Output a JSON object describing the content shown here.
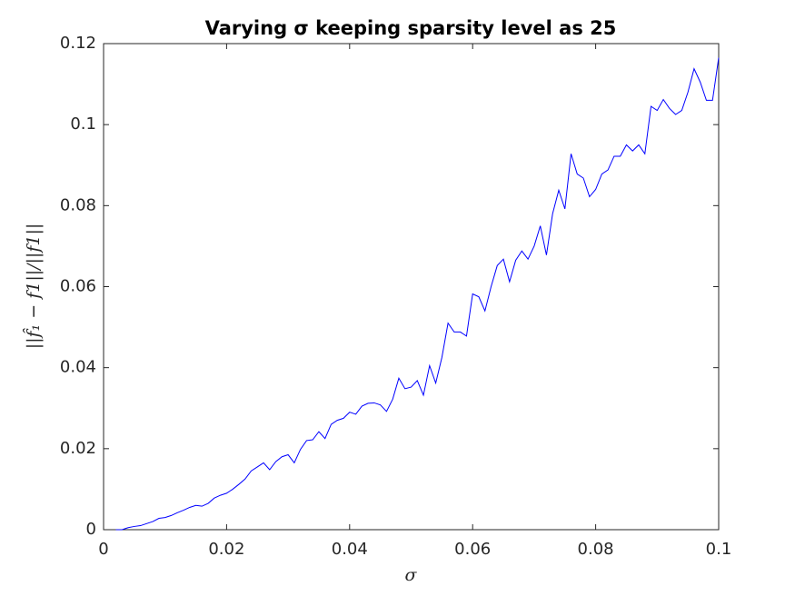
{
  "chart_data": {
    "type": "line",
    "title": "Varying σ keeping sparsity level as 25",
    "x_label": "σ",
    "y_label": "||f̂₁ − f1||/||f1||",
    "x": [
      0.002,
      0.003,
      0.004,
      0.005,
      0.006,
      0.007,
      0.008,
      0.009,
      0.01,
      0.011,
      0.012,
      0.013,
      0.014,
      0.015,
      0.016,
      0.017,
      0.018,
      0.019,
      0.02,
      0.021,
      0.022,
      0.023,
      0.024,
      0.025,
      0.026,
      0.027,
      0.028,
      0.029,
      0.03,
      0.031,
      0.032,
      0.033,
      0.034,
      0.035,
      0.036,
      0.037,
      0.038,
      0.039,
      0.04,
      0.041,
      0.042,
      0.043,
      0.044,
      0.045,
      0.046,
      0.047,
      0.048,
      0.049,
      0.05,
      0.051,
      0.052,
      0.053,
      0.054,
      0.055,
      0.056,
      0.057,
      0.058,
      0.059,
      0.06,
      0.061,
      0.062,
      0.063,
      0.064,
      0.065,
      0.066,
      0.067,
      0.068,
      0.069,
      0.07,
      0.071,
      0.072,
      0.073,
      0.074,
      0.075,
      0.076,
      0.077,
      0.078,
      0.079,
      0.08,
      0.081,
      0.082,
      0.083,
      0.084,
      0.085,
      0.086,
      0.087,
      0.088,
      0.089,
      0.09,
      0.091,
      0.092,
      0.093,
      0.094,
      0.095,
      0.096,
      0.097,
      0.098,
      0.099,
      0.1
    ],
    "series": [
      {
        "color": "#0000ff",
        "values": [
          0,
          0,
          0.0005,
          0.0008,
          0.001,
          0.0015,
          0.002,
          0.0028,
          0.003,
          0.0035,
          0.0042,
          0.0048,
          0.0055,
          0.006,
          0.0058,
          0.0065,
          0.0078,
          0.0085,
          0.009,
          0.01,
          0.0112,
          0.0125,
          0.0145,
          0.0155,
          0.0165,
          0.0148,
          0.0168,
          0.018,
          0.0185,
          0.0165,
          0.0198,
          0.022,
          0.0222,
          0.0242,
          0.0225,
          0.026,
          0.027,
          0.0275,
          0.029,
          0.0285,
          0.0305,
          0.0312,
          0.0313,
          0.0308,
          0.0292,
          0.0322,
          0.0374,
          0.0348,
          0.0352,
          0.0368,
          0.0332,
          0.0405,
          0.0362,
          0.0425,
          0.051,
          0.0488,
          0.0488,
          0.0478,
          0.0582,
          0.0575,
          0.054,
          0.06,
          0.0652,
          0.0668,
          0.0612,
          0.0665,
          0.0688,
          0.0668,
          0.07,
          0.075,
          0.0678,
          0.078,
          0.0838,
          0.0792,
          0.0928,
          0.0878,
          0.0868,
          0.0822,
          0.084,
          0.0878,
          0.0888,
          0.0922,
          0.0922,
          0.095,
          0.0935,
          0.095,
          0.0928,
          0.1045,
          0.1035,
          0.1062,
          0.104,
          0.1025,
          0.1035,
          0.108,
          0.1138,
          0.1105,
          0.106,
          0.106,
          0.1165
        ]
      }
    ],
    "xlim": [
      0,
      0.1
    ],
    "xticks": [
      0,
      0.02,
      0.04,
      0.06,
      0.08,
      0.1
    ],
    "ylim": [
      0,
      0.12
    ],
    "yticks": [
      0,
      0.02,
      0.04,
      0.06,
      0.08,
      0.1,
      0.12
    ],
    "grid": false
  }
}
